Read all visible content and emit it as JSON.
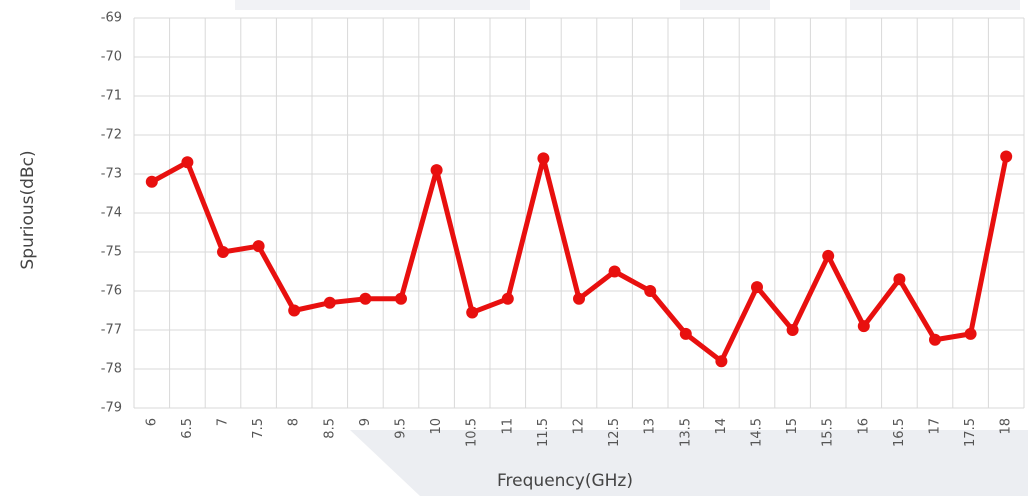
{
  "chart_data": {
    "type": "line",
    "x_label": "Frequency(GHz)",
    "y_label": "Spurious(dBc)",
    "categories": [
      "6",
      "6.5",
      "7",
      "7.5",
      "8",
      "8.5",
      "9",
      "9.5",
      "10",
      "10.5",
      "11",
      "11.5",
      "12",
      "12.5",
      "13",
      "13.5",
      "14",
      "14.5",
      "15",
      "15.5",
      "16",
      "16.5",
      "17",
      "17.5",
      "18"
    ],
    "values": [
      -73.2,
      -72.7,
      -75.0,
      -74.85,
      -76.5,
      -76.3,
      -76.2,
      -76.2,
      -72.9,
      -76.55,
      -76.2,
      -72.6,
      -76.2,
      -75.5,
      -76.0,
      -77.1,
      -77.8,
      -75.9,
      -77.0,
      -75.1,
      -76.9,
      -75.7,
      -77.25,
      -77.1,
      -72.55
    ],
    "color": "#e8100f",
    "ylim": [
      -79,
      -69
    ],
    "yticks": [
      -69,
      -70,
      -71,
      -72,
      -73,
      -74,
      -75,
      -76,
      -77,
      -78,
      -79
    ],
    "grid": true
  }
}
